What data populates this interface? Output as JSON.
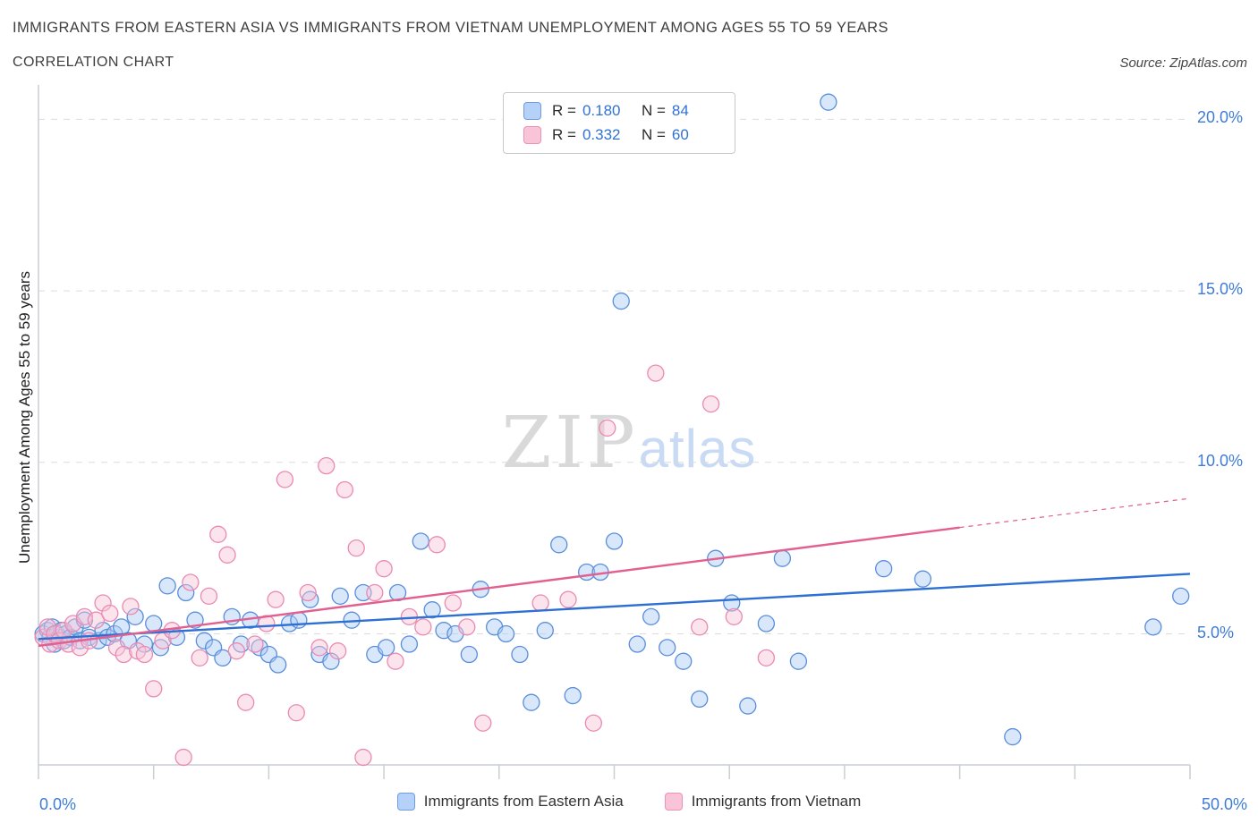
{
  "header": {
    "title": "IMMIGRANTS FROM EASTERN ASIA VS IMMIGRANTS FROM VIETNAM UNEMPLOYMENT AMONG AGES 55 TO 59 YEARS",
    "subtitle": "CORRELATION CHART",
    "source": "Source: ZipAtlas.com"
  },
  "legend_box": {
    "rows": [
      {
        "r_label": "R =",
        "r_value": "0.180",
        "n_label": "N =",
        "n_value": "84"
      },
      {
        "r_label": "R =",
        "r_value": "0.332",
        "n_label": "N =",
        "n_value": "60"
      }
    ]
  },
  "watermark": {
    "zip": "ZIP",
    "atlas": "atlas"
  },
  "bottom_legend": {
    "items": [
      {
        "label": "Immigrants from Eastern Asia"
      },
      {
        "label": "Immigrants from Vietnam"
      }
    ]
  },
  "chart_data": {
    "type": "scatter",
    "title": "Immigrants from Eastern Asia vs Immigrants from Vietnam Unemployment Among Ages 55 to 59 years",
    "ylabel": "Unemployment Among Ages 55 to 59 years",
    "xlabel": "",
    "xlim": [
      0,
      50
    ],
    "ylim": [
      1.18,
      21
    ],
    "grid": true,
    "x_ticks": [
      {
        "value": 0,
        "label": "0.0%"
      },
      {
        "value": 50,
        "label": "50.0%"
      }
    ],
    "x_minor_tick_step": 5,
    "y_ticks": [
      {
        "value": 5,
        "label": "5.0%"
      },
      {
        "value": 10,
        "label": "10.0%"
      },
      {
        "value": 15,
        "label": "15.0%"
      },
      {
        "value": 20,
        "label": "20.0%"
      }
    ],
    "series": [
      {
        "name": "Immigrants from Eastern Asia",
        "R": 0.18,
        "N": 84,
        "fill": "#a9c9f4",
        "stroke": "#5a8edb",
        "points": [
          [
            0.2,
            5.0
          ],
          [
            0.4,
            5.1
          ],
          [
            0.5,
            4.9
          ],
          [
            0.6,
            5.2
          ],
          [
            0.7,
            4.7
          ],
          [
            0.8,
            5.0
          ],
          [
            0.9,
            4.9
          ],
          [
            1.0,
            5.1
          ],
          [
            1.1,
            4.8
          ],
          [
            1.2,
            5.0
          ],
          [
            1.4,
            4.9
          ],
          [
            1.6,
            5.2
          ],
          [
            1.8,
            4.8
          ],
          [
            2.0,
            5.4
          ],
          [
            2.2,
            4.9
          ],
          [
            2.6,
            4.8
          ],
          [
            2.8,
            5.1
          ],
          [
            3.0,
            4.9
          ],
          [
            3.3,
            5.0
          ],
          [
            3.6,
            5.2
          ],
          [
            3.9,
            4.8
          ],
          [
            4.2,
            5.5
          ],
          [
            4.6,
            4.7
          ],
          [
            5.0,
            5.3
          ],
          [
            5.3,
            4.6
          ],
          [
            5.6,
            6.4
          ],
          [
            6.0,
            4.9
          ],
          [
            6.4,
            6.2
          ],
          [
            6.8,
            5.4
          ],
          [
            7.2,
            4.8
          ],
          [
            7.6,
            4.6
          ],
          [
            8.0,
            4.3
          ],
          [
            8.4,
            5.5
          ],
          [
            8.8,
            4.7
          ],
          [
            9.2,
            5.4
          ],
          [
            9.6,
            4.6
          ],
          [
            10.0,
            4.4
          ],
          [
            10.4,
            4.1
          ],
          [
            10.9,
            5.3
          ],
          [
            11.3,
            5.4
          ],
          [
            11.8,
            6.0
          ],
          [
            12.2,
            4.4
          ],
          [
            12.7,
            4.2
          ],
          [
            13.1,
            6.1
          ],
          [
            13.6,
            5.4
          ],
          [
            14.1,
            6.2
          ],
          [
            14.6,
            4.4
          ],
          [
            15.1,
            4.6
          ],
          [
            15.6,
            6.2
          ],
          [
            16.1,
            4.7
          ],
          [
            16.6,
            7.7
          ],
          [
            17.1,
            5.7
          ],
          [
            17.6,
            5.1
          ],
          [
            18.1,
            5.0
          ],
          [
            18.7,
            4.4
          ],
          [
            19.2,
            6.3
          ],
          [
            19.8,
            5.2
          ],
          [
            20.3,
            5.0
          ],
          [
            20.9,
            4.4
          ],
          [
            21.4,
            3.0
          ],
          [
            22.0,
            5.1
          ],
          [
            22.6,
            7.6
          ],
          [
            23.2,
            3.2
          ],
          [
            23.8,
            6.8
          ],
          [
            24.4,
            6.8
          ],
          [
            25.0,
            7.7
          ],
          [
            25.3,
            14.7
          ],
          [
            26.0,
            4.7
          ],
          [
            26.6,
            5.5
          ],
          [
            27.3,
            4.6
          ],
          [
            28.0,
            4.2
          ],
          [
            28.7,
            3.1
          ],
          [
            29.4,
            7.2
          ],
          [
            30.1,
            5.9
          ],
          [
            30.8,
            2.9
          ],
          [
            31.6,
            5.3
          ],
          [
            32.3,
            7.2
          ],
          [
            33.0,
            4.2
          ],
          [
            34.3,
            20.5
          ],
          [
            36.7,
            6.9
          ],
          [
            38.4,
            6.6
          ],
          [
            42.3,
            2.0
          ],
          [
            48.4,
            5.2
          ],
          [
            49.6,
            6.1
          ]
        ]
      },
      {
        "name": "Immigrants from Vietnam",
        "R": 0.332,
        "N": 60,
        "fill": "#f9c3d8",
        "stroke": "#ea8ab2",
        "points": [
          [
            0.2,
            4.9
          ],
          [
            0.4,
            5.2
          ],
          [
            0.5,
            4.7
          ],
          [
            0.7,
            5.0
          ],
          [
            0.9,
            4.8
          ],
          [
            1.1,
            5.1
          ],
          [
            1.3,
            4.7
          ],
          [
            1.5,
            5.3
          ],
          [
            1.8,
            4.6
          ],
          [
            2.0,
            5.5
          ],
          [
            2.2,
            4.8
          ],
          [
            2.5,
            5.4
          ],
          [
            2.8,
            5.9
          ],
          [
            3.1,
            5.6
          ],
          [
            3.4,
            4.6
          ],
          [
            3.7,
            4.4
          ],
          [
            4.0,
            5.8
          ],
          [
            4.3,
            4.5
          ],
          [
            4.6,
            4.4
          ],
          [
            5.0,
            3.4
          ],
          [
            5.4,
            4.8
          ],
          [
            5.8,
            5.1
          ],
          [
            6.3,
            1.4
          ],
          [
            6.6,
            6.5
          ],
          [
            7.0,
            4.3
          ],
          [
            7.4,
            6.1
          ],
          [
            7.8,
            7.9
          ],
          [
            8.2,
            7.3
          ],
          [
            8.6,
            4.5
          ],
          [
            9.0,
            3.0
          ],
          [
            9.4,
            4.7
          ],
          [
            9.9,
            5.3
          ],
          [
            10.3,
            6.0
          ],
          [
            10.7,
            9.5
          ],
          [
            11.2,
            2.7
          ],
          [
            11.7,
            6.2
          ],
          [
            12.2,
            4.6
          ],
          [
            12.5,
            9.9
          ],
          [
            13.0,
            4.5
          ],
          [
            13.3,
            9.2
          ],
          [
            13.8,
            7.5
          ],
          [
            14.1,
            1.4
          ],
          [
            14.6,
            6.2
          ],
          [
            15.0,
            6.9
          ],
          [
            15.5,
            4.2
          ],
          [
            16.1,
            5.5
          ],
          [
            16.7,
            5.2
          ],
          [
            17.3,
            7.6
          ],
          [
            18.0,
            5.9
          ],
          [
            18.6,
            5.2
          ],
          [
            19.3,
            2.4
          ],
          [
            21.8,
            5.9
          ],
          [
            23.0,
            6.0
          ],
          [
            24.1,
            2.4
          ],
          [
            24.7,
            11.0
          ],
          [
            26.8,
            12.6
          ],
          [
            28.7,
            5.2
          ],
          [
            29.2,
            11.7
          ],
          [
            30.2,
            5.5
          ],
          [
            31.6,
            4.3
          ]
        ]
      }
    ],
    "trend_lines": [
      {
        "series": "Immigrants from Eastern Asia",
        "x1": 0,
        "y1": 4.85,
        "x2": 50,
        "y2": 6.75,
        "color": "#2d6fd2",
        "style": "solid"
      },
      {
        "series": "Immigrants from Vietnam",
        "x1": 0,
        "y1": 4.65,
        "x2": 40,
        "y2": 8.1,
        "color": "#e25f8f",
        "style": "solid"
      },
      {
        "series": "Immigrants from Vietnam (extrapolated)",
        "x1": 40,
        "y1": 8.1,
        "x2": 50,
        "y2": 8.95,
        "color": "#e2608e",
        "style": "dashed"
      }
    ],
    "colors": {
      "axis": "#c9ced4",
      "grid": "#dcdcdc",
      "tick_label": "#3e7cd6"
    },
    "legend_position": "bottom-center"
  }
}
